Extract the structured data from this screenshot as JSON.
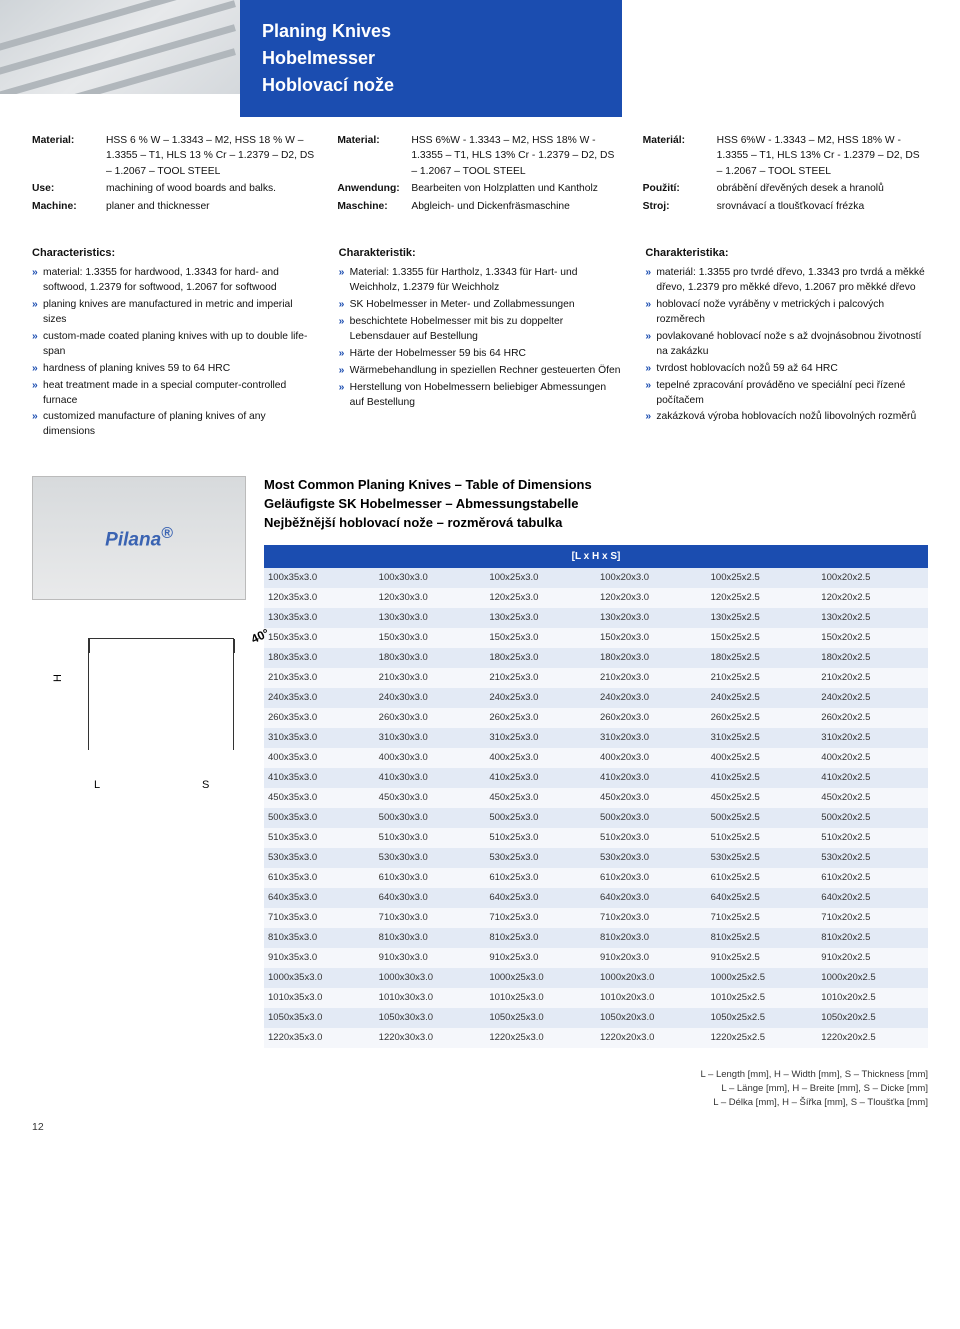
{
  "header": {
    "line1": "Planing Knives",
    "line2": "Hobelmesser",
    "line3": "Hoblovací nože"
  },
  "topCols": [
    {
      "rows": [
        {
          "k": "Material:",
          "v": "HSS 6 % W – 1.3343 – M2, HSS 18 % W – 1.3355 – T1, HLS 13 % Cr – 1.2379 – D2, DS – 1.2067 – TOOL STEEL"
        },
        {
          "k": "Use:",
          "v": "machining of wood boards and balks."
        },
        {
          "k": "Machine:",
          "v": "planer and thicknesser"
        }
      ]
    },
    {
      "rows": [
        {
          "k": "Material:",
          "v": "HSS 6%W - 1.3343 – M2, HSS 18% W - 1.3355 – T1, HLS 13% Cr - 1.2379 – D2, DS – 1.2067 – TOOL STEEL"
        },
        {
          "k": "Anwendung:",
          "v": "Bearbeiten von Holzplatten und Kantholz"
        },
        {
          "k": "Maschine:",
          "v": "Abgleich- und Dickenfräsmaschine"
        }
      ]
    },
    {
      "rows": [
        {
          "k": "Materiál:",
          "v": "HSS 6%W - 1.3343 – M2, HSS 18% W - 1.3355 – T1, HLS 13% Cr - 1.2379 – D2, DS – 1.2067 – TOOL STEEL"
        },
        {
          "k": "Použití:",
          "v": "obrábění dřevěných desek a hranolů"
        },
        {
          "k": "Stroj:",
          "v": "srovnávací a tloušťkovací frézka"
        }
      ]
    }
  ],
  "midCols": [
    {
      "title": "Characteristics:",
      "items": [
        "material: 1.3355 for hardwood, 1.3343 for hard- and softwood, 1.2379 for softwood, 1.2067 for softwood",
        "planing knives are manufactured in metric and imperial sizes",
        "custom-made coated planing knives with up to double life-span",
        "hardness of planing knives 59 to 64 HRC",
        "heat treatment made in a special computer-controlled furnace",
        "customized manufacture of planing knives of any dimensions"
      ]
    },
    {
      "title": "Charakteristik:",
      "items": [
        "Material: 1.3355 für Hartholz, 1.3343 für Hart- und Weichholz, 1.2379 für Weichholz",
        "SK Hobelmesser in Meter- und Zollabmessungen",
        "beschichtete Hobelmesser mit bis zu doppelter Lebensdauer auf Bestellung",
        "Härte der Hobelmesser 59 bis 64 HRC",
        "Wärmebehandlung in speziellen Rechner gesteuerten Öfen",
        "Herstellung von Hobelmessern beliebiger Abmessungen auf Bestellung"
      ]
    },
    {
      "title": "Charakteristika:",
      "items": [
        "materiál: 1.3355 pro tvrdé dřevo, 1.3343 pro tvrdá a měkké dřevo, 1.2379 pro měkké dřevo, 1.2067 pro měkké dřevo",
        "hoblovací nože vyráběny v metrických i palcových rozměrech",
        "povlakované hoblovací nože s až dvojnásobnou životností na zakázku",
        "tvrdost hoblovacích nožů 59 až 64 HRC",
        "tepelné zpracování prováděno ve speciální peci řízené počítačem",
        "zakázková výroba hoblovacích nožů libovolných rozměrů"
      ]
    }
  ],
  "brand": "Pilana",
  "brandReg": "®",
  "diagram": {
    "angle": "40°",
    "H": "H",
    "L": "L",
    "S": "S"
  },
  "tableTitle": {
    "l1": "Most Common Planing Knives – Table of Dimensions",
    "l2": "Geläufigste SK Hobelmesser – Abmessungstabelle",
    "l3": "Nejběžnější hoblovací nože – rozměrová tabulka"
  },
  "tableHeader": "[L x H x S]",
  "tableRows": [
    [
      "100x35x3.0",
      "100x30x3.0",
      "100x25x3.0",
      "100x20x3.0",
      "100x25x2.5",
      "100x20x2.5"
    ],
    [
      "120x35x3.0",
      "120x30x3.0",
      "120x25x3.0",
      "120x20x3.0",
      "120x25x2.5",
      "120x20x2.5"
    ],
    [
      "130x35x3.0",
      "130x30x3.0",
      "130x25x3.0",
      "130x20x3.0",
      "130x25x2.5",
      "130x20x2.5"
    ],
    [
      "150x35x3.0",
      "150x30x3.0",
      "150x25x3.0",
      "150x20x3.0",
      "150x25x2.5",
      "150x20x2.5"
    ],
    [
      "180x35x3.0",
      "180x30x3.0",
      "180x25x3.0",
      "180x20x3.0",
      "180x25x2.5",
      "180x20x2.5"
    ],
    [
      "210x35x3.0",
      "210x30x3.0",
      "210x25x3.0",
      "210x20x3.0",
      "210x25x2.5",
      "210x20x2.5"
    ],
    [
      "240x35x3.0",
      "240x30x3.0",
      "240x25x3.0",
      "240x20x3.0",
      "240x25x2.5",
      "240x20x2.5"
    ],
    [
      "260x35x3.0",
      "260x30x3.0",
      "260x25x3.0",
      "260x20x3.0",
      "260x25x2.5",
      "260x20x2.5"
    ],
    [
      "310x35x3.0",
      "310x30x3.0",
      "310x25x3.0",
      "310x20x3.0",
      "310x25x2.5",
      "310x20x2.5"
    ],
    [
      "400x35x3.0",
      "400x30x3.0",
      "400x25x3.0",
      "400x20x3.0",
      "400x25x2.5",
      "400x20x2.5"
    ],
    [
      "410x35x3.0",
      "410x30x3.0",
      "410x25x3.0",
      "410x20x3.0",
      "410x25x2.5",
      "410x20x2.5"
    ],
    [
      "450x35x3.0",
      "450x30x3.0",
      "450x25x3.0",
      "450x20x3.0",
      "450x25x2.5",
      "450x20x2.5"
    ],
    [
      "500x35x3.0",
      "500x30x3.0",
      "500x25x3.0",
      "500x20x3.0",
      "500x25x2.5",
      "500x20x2.5"
    ],
    [
      "510x35x3.0",
      "510x30x3.0",
      "510x25x3.0",
      "510x20x3.0",
      "510x25x2.5",
      "510x20x2.5"
    ],
    [
      "530x35x3.0",
      "530x30x3.0",
      "530x25x3.0",
      "530x20x3.0",
      "530x25x2.5",
      "530x20x2.5"
    ],
    [
      "610x35x3.0",
      "610x30x3.0",
      "610x25x3.0",
      "610x20x3.0",
      "610x25x2.5",
      "610x20x2.5"
    ],
    [
      "640x35x3.0",
      "640x30x3.0",
      "640x25x3.0",
      "640x20x3.0",
      "640x25x2.5",
      "640x20x2.5"
    ],
    [
      "710x35x3.0",
      "710x30x3.0",
      "710x25x3.0",
      "710x20x3.0",
      "710x25x2.5",
      "710x20x2.5"
    ],
    [
      "810x35x3.0",
      "810x30x3.0",
      "810x25x3.0",
      "810x20x3.0",
      "810x25x2.5",
      "810x20x2.5"
    ],
    [
      "910x35x3.0",
      "910x30x3.0",
      "910x25x3.0",
      "910x20x3.0",
      "910x25x2.5",
      "910x20x2.5"
    ],
    [
      "1000x35x3.0",
      "1000x30x3.0",
      "1000x25x3.0",
      "1000x20x3.0",
      "1000x25x2.5",
      "1000x20x2.5"
    ],
    [
      "1010x35x3.0",
      "1010x30x3.0",
      "1010x25x3.0",
      "1010x20x3.0",
      "1010x25x2.5",
      "1010x20x2.5"
    ],
    [
      "1050x35x3.0",
      "1050x30x3.0",
      "1050x25x3.0",
      "1050x20x3.0",
      "1050x25x2.5",
      "1050x20x2.5"
    ],
    [
      "1220x35x3.0",
      "1220x30x3.0",
      "1220x25x3.0",
      "1220x20x3.0",
      "1220x25x2.5",
      "1220x20x2.5"
    ]
  ],
  "legend": {
    "l1": "L – Length [mm], H – Width [mm], S – Thickness [mm]",
    "l2": "L – Länge [mm], H – Breite [mm], S – Dicke [mm]",
    "l3": "L – Délka [mm], H – Šířka [mm], S – Tloušťka [mm]"
  },
  "pageNum": "12"
}
